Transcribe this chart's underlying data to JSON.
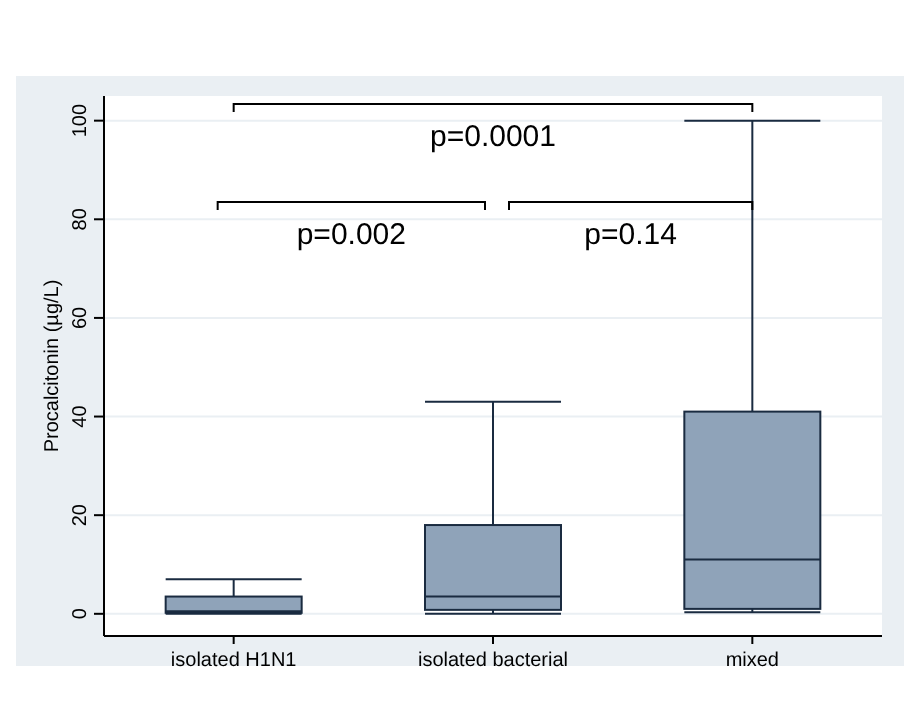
{
  "chart_data": {
    "type": "box",
    "ylabel": "Procalcitonin (µg/L)",
    "categories": [
      "isolated H1N1",
      "isolated bacterial",
      "mixed"
    ],
    "boxes": [
      {
        "low": 0,
        "q1": 0.2,
        "median": 0.5,
        "q3": 3.5,
        "high": 7
      },
      {
        "low": 0,
        "q1": 0.8,
        "median": 3.5,
        "q3": 18,
        "high": 43
      },
      {
        "low": 0.3,
        "q1": 1,
        "median": 11,
        "q3": 41,
        "high": 100
      }
    ],
    "color": "#8fa3b9",
    "ylim": [
      -4.5,
      105
    ],
    "yticks": [
      0,
      20,
      40,
      60,
      80,
      100
    ],
    "grid": "y",
    "annotations": [
      "p=0.0001",
      "p=0.002",
      "p=0.14"
    ]
  }
}
